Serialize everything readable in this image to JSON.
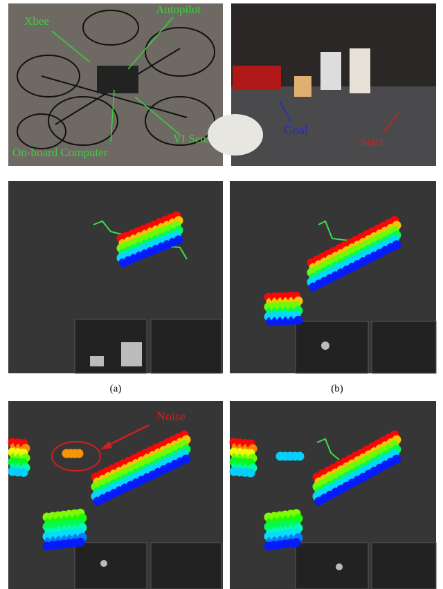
{
  "photos": {
    "robot": {
      "labels": {
        "xbee": "Xbee",
        "autopilot": "Autopilot",
        "onboard": "On-board Computer",
        "vi_sensor": "VI Sensor"
      }
    },
    "scene": {
      "labels": {
        "goal": "Goal",
        "start": "Start"
      }
    }
  },
  "annotations": {
    "noise": "Noise"
  },
  "captions": [
    "(a)",
    "(b)"
  ]
}
